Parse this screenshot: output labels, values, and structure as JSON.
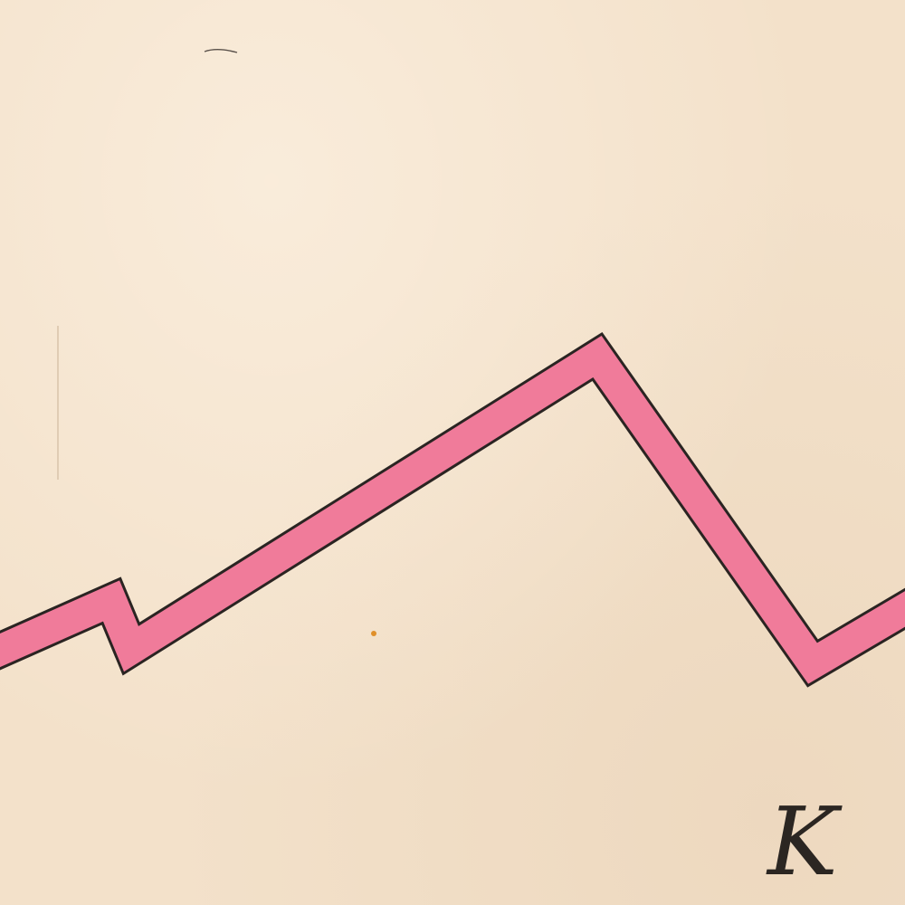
{
  "figure": {
    "letter": "K",
    "colors": {
      "paper": "#f3e1ca",
      "band_fill": "#f07b9a",
      "band_outline": "#2a2422",
      "ink": "#2b2622"
    }
  }
}
